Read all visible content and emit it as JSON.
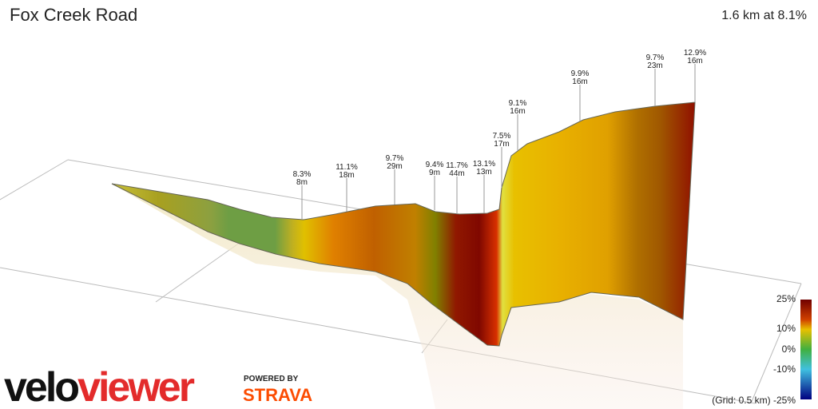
{
  "header": {
    "title": "Fox Creek Road",
    "summary": "1.6 km at 8.1%"
  },
  "annotations": [
    {
      "grade": "8.3%",
      "length": "8m"
    },
    {
      "grade": "11.1%",
      "length": "18m"
    },
    {
      "grade": "9.7%",
      "length": "29m"
    },
    {
      "grade": "9.4%",
      "length": "9m"
    },
    {
      "grade": "11.7%",
      "length": "44m"
    },
    {
      "grade": "13.1%",
      "length": "13m"
    },
    {
      "grade": "7.5%",
      "length": "17m"
    },
    {
      "grade": "9.1%",
      "length": "16m"
    },
    {
      "grade": "9.9%",
      "length": "16m"
    },
    {
      "grade": "9.7%",
      "length": "23m"
    },
    {
      "grade": "12.9%",
      "length": "16m"
    }
  ],
  "legend": {
    "labels": [
      "25%",
      "10%",
      "0%",
      "-10%",
      "(Grid: 0.5 km) -25%"
    ]
  },
  "logo": {
    "velo": "velo",
    "viewer": "viewer",
    "powered": "POWERED BY",
    "strava": "STRAVA"
  }
}
